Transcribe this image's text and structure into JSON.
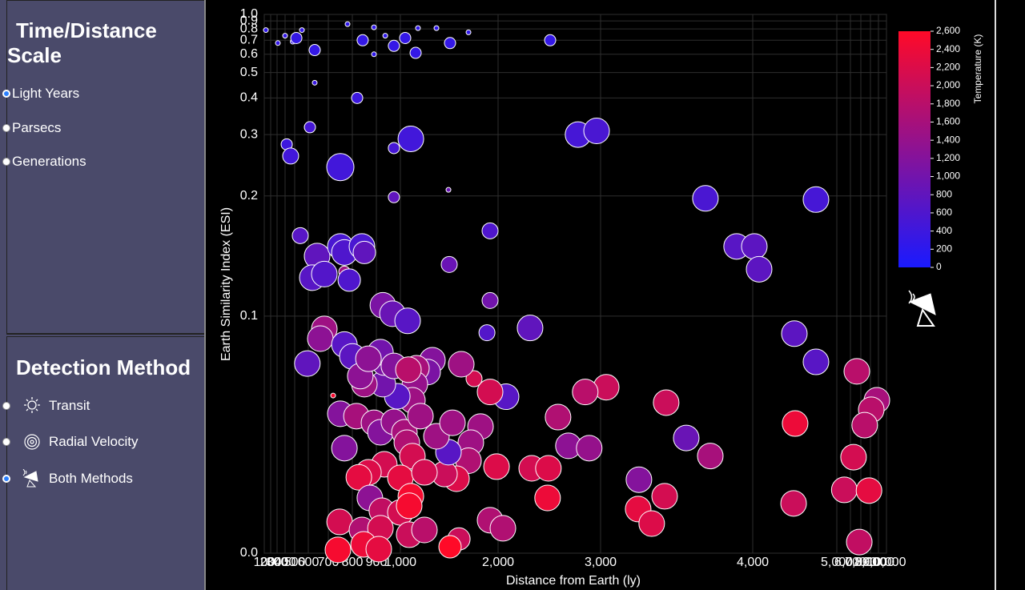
{
  "sidebar": {
    "scale": {
      "title": "Time/Distance Scale",
      "options": [
        "Light Years",
        "Parsecs",
        "Generations"
      ],
      "selected": 0
    },
    "detection": {
      "title": "Detection Method",
      "options": [
        "Transit",
        "Radial Velocity",
        "Both Methods"
      ],
      "selected": 2
    }
  },
  "chart_data": {
    "type": "scatter",
    "x_label": "Distance from Earth (ly)",
    "y_label": "Earth Similarity Index (ESI)",
    "xlim": [
      100,
      10000
    ],
    "ylim": [
      0,
      1
    ],
    "xticks": [
      100,
      200,
      300,
      400,
      500,
      600,
      700,
      800,
      900,
      {
        "value": 1000,
        "label": "1,000"
      },
      {
        "value": 2000,
        "label": "2,000"
      },
      {
        "value": 3000,
        "label": "3,000"
      },
      {
        "value": 4000,
        "label": "4,000"
      },
      {
        "value": 5000,
        "label": "5,000"
      },
      {
        "value": 6000,
        "label": "6,000"
      },
      {
        "value": 7000,
        "label": "7,000"
      },
      {
        "value": 8000,
        "label": "8,000"
      },
      {
        "value": 9000,
        "label": "9,000"
      },
      {
        "value": 10000,
        "label": "10,000"
      }
    ],
    "yticks": [
      {
        "value": 0,
        "label": "0.0"
      },
      0.1,
      0.2,
      0.3,
      0.4,
      0.5,
      0.6,
      0.7,
      0.8,
      0.9,
      {
        "value": 1,
        "label": "1.0"
      }
    ],
    "grid": true,
    "point_stroke": "#ffffff",
    "x": [
      125,
      310,
      400,
      480,
      512,
      553,
      632,
      780,
      820,
      843,
      890,
      890,
      937,
      973,
      1049,
      1156,
      1180,
      1369,
      1508,
      1697,
      2508,
      632,
      608,
      417,
      458,
      750,
      1107,
      973,
      973,
      1492,
      2780,
      2961,
      3689,
      4752,
      541,
      644,
      620,
      680,
      750,
      767,
      840,
      850,
      767,
      787,
      1918,
      1500,
      1918,
      927,
      967,
      1074,
      3894,
      4019,
      4076,
      680,
      660,
      593,
      767,
      800,
      1886,
      2312,
      4495,
      4752,
      6615,
      8800,
      8100,
      7400,
      6300,
      5550,
      7850,
      6850,
      4504,
      4486,
      3431,
      3563,
      3721,
      3252,
      3421,
      3247,
      3336,
      3037,
      2850,
      2585,
      2686,
      2889,
      2328,
      2491,
      2483,
      1984,
      1918,
      2047,
      2078,
      1918,
      1754,
      1623,
      1599,
      1508,
      1820,
      1721,
      1697,
      1574,
      1451,
      1492,
      1369,
      1533,
      1328,
      1279,
      1164,
      1148,
      1123,
      987,
      927,
      933,
      917,
      850,
      833,
      750,
      817,
      890,
      917,
      973,
      1041,
      1205,
      767,
      1066,
      1123,
      933,
      867,
      827,
      1000,
      1246,
      873,
      923,
      1000,
      1107,
      1090,
      747,
      840,
      917,
      1090,
      1246,
      740,
      847,
      910,
      720,
      973,
      1082,
      867
    ],
    "values": [
      0.79,
      0.68,
      0.74,
      0.69,
      0.72,
      0.79,
      0.63,
      0.86,
      0.4,
      0.7,
      0.82,
      0.6,
      0.74,
      0.66,
      0.72,
      0.61,
      0.81,
      0.81,
      0.68,
      0.77,
      0.7,
      0.46,
      0.32,
      0.284,
      0.265,
      0.247,
      0.293,
      0.278,
      0.199,
      0.21,
      0.3,
      0.31,
      0.198,
      0.197,
      0.167,
      0.15,
      0.132,
      0.135,
      0.158,
      0.153,
      0.158,
      0.153,
      0.137,
      0.13,
      0.171,
      0.143,
      0.113,
      0.109,
      0.102,
      0.098,
      0.158,
      0.158,
      0.139,
      0.0946,
      0.0905,
      0.08,
      0.088,
      0.083,
      0.093,
      0.095,
      0.0926,
      0.0807,
      0.0767,
      0.0645,
      0.0605,
      0.054,
      0.0405,
      0.0267,
      0.0264,
      0.0047,
      0.0547,
      0.021,
      0.0635,
      0.0486,
      0.041,
      0.031,
      0.024,
      0.0186,
      0.0125,
      0.07,
      0.068,
      0.0574,
      0.0453,
      0.0443,
      0.0358,
      0.0358,
      0.0233,
      0.0365,
      0.0139,
      0.0105,
      0.066,
      0.068,
      0.0736,
      0.0797,
      0.006,
      0.0027,
      0.0534,
      0.0466,
      0.039,
      0.0314,
      0.0334,
      0.0426,
      0.0493,
      0.055,
      0.0814,
      0.0764,
      0.078,
      0.0713,
      0.0645,
      0.0662,
      0.0713,
      0.0804,
      0.0848,
      0.0713,
      0.0747,
      0.0588,
      0.0578,
      0.055,
      0.051,
      0.0554,
      0.051,
      0.0578,
      0.0443,
      0.0466,
      0.0409,
      0.0375,
      0.0341,
      0.032,
      0.0318,
      0.0341,
      0.0233,
      0.0179,
      0.0172,
      0.024,
      0.02,
      0.0132,
      0.0098,
      0.0105,
      0.0078,
      0.0098,
      0.0014,
      0.0037,
      0.0017,
      0.0665,
      0.079,
      0.0774,
      0.082
    ],
    "sizes": [
      3,
      3,
      3,
      3,
      7,
      3,
      7,
      3,
      7,
      7,
      3,
      3,
      3,
      7,
      7,
      7,
      3,
      3,
      7,
      3,
      7,
      3,
      7,
      7,
      10,
      17,
      16,
      7,
      7,
      3,
      16,
      16,
      16,
      16,
      10,
      16,
      16,
      16,
      16,
      16,
      16,
      14,
      7,
      14,
      10,
      10,
      10,
      16,
      16,
      16,
      16,
      16,
      16,
      16,
      16,
      16,
      16,
      16,
      10,
      16,
      16,
      16,
      16,
      16,
      16,
      16,
      16,
      16,
      16,
      16,
      16,
      16,
      16,
      16,
      16,
      16,
      16,
      16,
      16,
      16,
      16,
      16,
      16,
      16,
      16,
      16,
      16,
      16,
      16,
      16,
      16,
      16,
      10,
      16,
      14,
      14,
      16,
      16,
      16,
      16,
      16,
      16,
      16,
      16,
      16,
      16,
      16,
      16,
      16,
      16,
      16,
      16,
      16,
      16,
      16,
      16,
      16,
      16,
      16,
      16,
      16,
      16,
      16,
      16,
      16,
      16,
      16,
      16,
      16,
      16,
      16,
      16,
      16,
      16,
      16,
      16,
      16,
      16,
      16,
      16,
      16,
      16,
      16,
      3,
      16,
      16,
      16
    ],
    "temperatures": [
      250,
      300,
      300,
      300,
      300,
      300,
      300,
      250,
      400,
      300,
      250,
      250,
      250,
      300,
      300,
      300,
      250,
      250,
      300,
      250,
      300,
      350,
      500,
      400,
      450,
      450,
      450,
      500,
      800,
      900,
      500,
      550,
      550,
      500,
      700,
      800,
      700,
      650,
      550,
      600,
      550,
      800,
      1500,
      600,
      600,
      900,
      1000,
      1100,
      900,
      700,
      700,
      750,
      750,
      1500,
      1300,
      800,
      700,
      750,
      650,
      800,
      750,
      700,
      1800,
      1600,
      1800,
      1800,
      2100,
      2000,
      2300,
      1900,
      2400,
      2000,
      2000,
      900,
      1600,
      1200,
      2100,
      2300,
      2200,
      2000,
      1800,
      1700,
      1300,
      1400,
      2100,
      2200,
      2400,
      2200,
      1700,
      1700,
      700,
      2100,
      2100,
      1500,
      2000,
      2600,
      1500,
      1500,
      1700,
      2200,
      2000,
      700,
      1500,
      1500,
      1200,
      1100,
      1600,
      1400,
      1500,
      700,
      1000,
      1100,
      1000,
      1500,
      1300,
      1200,
      1600,
      1500,
      1200,
      1400,
      1600,
      1500,
      1200,
      1700,
      2100,
      2100,
      2200,
      2300,
      2300,
      2100,
      1300,
      1900,
      2100,
      2500,
      2500,
      2100,
      1700,
      2100,
      2000,
      1800,
      2500,
      2400,
      2300,
      2500,
      1200,
      1800,
      1300
    ],
    "colorbar": {
      "label": "Temperature (K)",
      "lim": [
        0,
        2600
      ],
      "colors": [
        "#1a1aff",
        "#ff0a28"
      ],
      "ticks": [
        0,
        200,
        400,
        600,
        800,
        {
          "value": 1000,
          "label": "1,000"
        },
        {
          "value": 1200,
          "label": "1,200"
        },
        {
          "value": 1400,
          "label": "1,400"
        },
        {
          "value": 1600,
          "label": "1,600"
        },
        {
          "value": 1800,
          "label": "1,800"
        },
        {
          "value": 2000,
          "label": "2,000"
        },
        {
          "value": 2200,
          "label": "2,200"
        },
        {
          "value": 2400,
          "label": "2,400"
        },
        {
          "value": 2600,
          "label": "2,600"
        }
      ]
    }
  }
}
